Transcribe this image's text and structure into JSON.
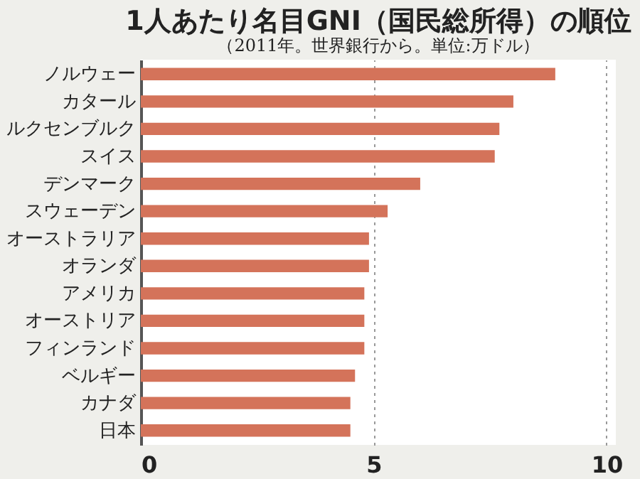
{
  "chart_data": {
    "type": "bar",
    "orientation": "horizontal",
    "title": "1人あたり名目GNI（国民総所得）の順位",
    "subtitle": "（2011年。世界銀行から。単位:万ドル）",
    "categories": [
      "ノルウェー",
      "カタール",
      "ルクセンブルク",
      "スイス",
      "デンマーク",
      "スウェーデン",
      "オーストラリア",
      "オランダ",
      "アメリカ",
      "オーストリア",
      "フィンランド",
      "ベルギー",
      "カナダ",
      "日本"
    ],
    "values": [
      8.9,
      8.0,
      7.7,
      7.6,
      6.0,
      5.3,
      4.9,
      4.9,
      4.8,
      4.8,
      4.8,
      4.6,
      4.5,
      4.5
    ],
    "color": "#d4735a",
    "xlim": [
      0,
      10.2
    ],
    "xticks": [
      0,
      5,
      10
    ],
    "grid": "x"
  }
}
